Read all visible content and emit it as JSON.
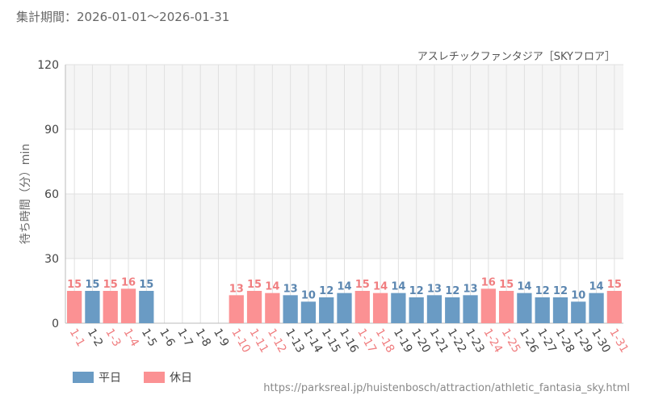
{
  "header": {
    "period": "集計期間：2026-01-01～2026-01-31"
  },
  "colors": {
    "weekday": "#6a9bc4",
    "holiday": "#fb9193",
    "weekday_label": "#5b86b0",
    "holiday_label": "#f07e80",
    "grid": "#e0e0e0",
    "band": "#f5f5f5"
  },
  "legend": {
    "weekday": "平日",
    "holiday": "休日"
  },
  "source_url": "https://parksreal.jp/huistenbosch/attraction/athletic_fantasia_sky.html",
  "chart_data": {
    "type": "bar",
    "title": "アスレチックファンタジア［SKYフロア］",
    "ylabel": "待ち時間（分）min",
    "xlabel": "",
    "ylim": [
      0,
      120
    ],
    "yticks": [
      0,
      30,
      60,
      90,
      120
    ],
    "categories": [
      "1-1",
      "1-2",
      "1-3",
      "1-4",
      "1-5",
      "1-6",
      "1-7",
      "1-8",
      "1-9",
      "1-10",
      "1-11",
      "1-12",
      "1-13",
      "1-14",
      "1-15",
      "1-16",
      "1-17",
      "1-18",
      "1-19",
      "1-20",
      "1-21",
      "1-22",
      "1-23",
      "1-24",
      "1-25",
      "1-26",
      "1-27",
      "1-28",
      "1-29",
      "1-30",
      "1-31"
    ],
    "values": [
      15,
      15,
      15,
      16,
      15,
      null,
      null,
      null,
      null,
      13,
      15,
      14,
      13,
      10,
      12,
      14,
      15,
      14,
      14,
      12,
      13,
      12,
      13,
      16,
      15,
      14,
      12,
      12,
      10,
      14,
      15
    ],
    "day_type": [
      "holiday",
      "weekday",
      "holiday",
      "holiday",
      "weekday",
      "weekday",
      "weekday",
      "weekday",
      "weekday",
      "holiday",
      "holiday",
      "holiday",
      "weekday",
      "weekday",
      "weekday",
      "weekday",
      "holiday",
      "holiday",
      "weekday",
      "weekday",
      "weekday",
      "weekday",
      "weekday",
      "holiday",
      "holiday",
      "weekday",
      "weekday",
      "weekday",
      "weekday",
      "weekday",
      "holiday"
    ],
    "legend_position": "bottom-left",
    "grid": true
  }
}
